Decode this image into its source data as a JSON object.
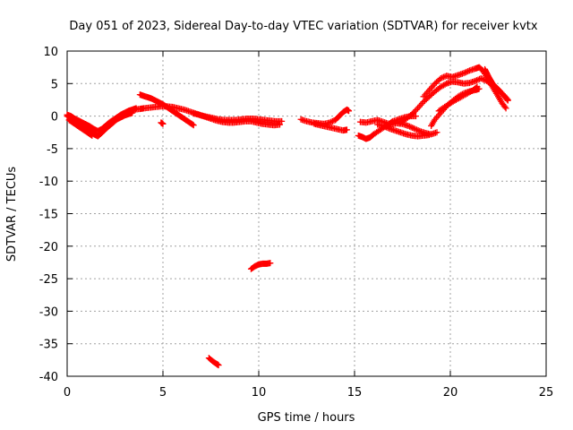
{
  "chart_data": {
    "type": "scatter",
    "title": "Day 051 of 2023, Sidereal Day-to-day VTEC variation (SDTVAR) for receiver kvtx",
    "xlabel": "GPS time / hours",
    "ylabel": "SDTVAR / TECUs",
    "xlim": [
      0,
      25
    ],
    "ylim": [
      -40,
      10
    ],
    "xticks": [
      0,
      5,
      10,
      15,
      20,
      25
    ],
    "yticks": [
      10,
      5,
      0,
      -5,
      -10,
      -15,
      -20,
      -25,
      -30,
      -35,
      -40
    ],
    "grid": true,
    "marker": "plus",
    "series": [
      {
        "name": "SDTVAR",
        "color": "#ff0000",
        "segments": [
          [
            [
              0.0,
              0.0
            ],
            [
              0.2,
              -0.3
            ],
            [
              0.4,
              -0.8
            ],
            [
              0.6,
              -1.2
            ],
            [
              0.8,
              -1.6
            ],
            [
              1.0,
              -2.0
            ],
            [
              1.2,
              -2.4
            ],
            [
              1.4,
              -2.8
            ],
            [
              1.6,
              -3.1
            ],
            [
              1.8,
              -2.6
            ],
            [
              2.0,
              -2.0
            ],
            [
              2.2,
              -1.5
            ],
            [
              2.4,
              -1.0
            ],
            [
              2.6,
              -0.5
            ],
            [
              2.8,
              -0.2
            ],
            [
              3.0,
              0.1
            ],
            [
              3.2,
              0.3
            ],
            [
              3.4,
              0.5
            ]
          ],
          [
            [
              0.0,
              0.2
            ],
            [
              0.2,
              0.0
            ],
            [
              0.4,
              -0.4
            ],
            [
              0.6,
              -0.7
            ],
            [
              0.8,
              -1.0
            ],
            [
              1.0,
              -1.3
            ],
            [
              1.2,
              -1.6
            ],
            [
              1.4,
              -2.0
            ],
            [
              1.6,
              -2.3
            ],
            [
              1.8,
              -2.0
            ],
            [
              2.0,
              -1.5
            ],
            [
              2.2,
              -1.0
            ],
            [
              2.4,
              -0.6
            ],
            [
              2.6,
              -0.2
            ],
            [
              2.8,
              0.2
            ],
            [
              3.0,
              0.5
            ],
            [
              3.2,
              0.8
            ],
            [
              3.4,
              1.0
            ],
            [
              3.6,
              1.2
            ]
          ],
          [
            [
              0.1,
              -0.6
            ],
            [
              0.3,
              -1.0
            ],
            [
              0.5,
              -1.4
            ],
            [
              0.7,
              -1.8
            ],
            [
              0.9,
              -2.2
            ],
            [
              1.1,
              -2.6
            ],
            [
              1.3,
              -3.0
            ]
          ],
          [
            [
              3.5,
              1.0
            ],
            [
              3.8,
              1.1
            ],
            [
              4.0,
              1.2
            ],
            [
              4.3,
              1.3
            ],
            [
              4.6,
              1.4
            ],
            [
              4.9,
              1.5
            ],
            [
              5.2,
              1.5
            ],
            [
              5.5,
              1.4
            ],
            [
              5.8,
              1.2
            ],
            [
              6.1,
              1.0
            ],
            [
              6.4,
              0.7
            ],
            [
              6.7,
              0.4
            ],
            [
              7.0,
              0.1
            ],
            [
              7.3,
              -0.1
            ],
            [
              7.6,
              -0.3
            ],
            [
              7.9,
              -0.5
            ],
            [
              8.2,
              -0.6
            ],
            [
              8.5,
              -0.6
            ],
            [
              8.8,
              -0.6
            ],
            [
              9.1,
              -0.5
            ],
            [
              9.4,
              -0.4
            ],
            [
              9.7,
              -0.4
            ],
            [
              10.0,
              -0.5
            ],
            [
              10.3,
              -0.6
            ],
            [
              10.6,
              -0.7
            ],
            [
              10.9,
              -0.8
            ],
            [
              11.2,
              -0.8
            ]
          ],
          [
            [
              3.8,
              3.3
            ],
            [
              4.0,
              3.1
            ],
            [
              4.2,
              2.9
            ],
            [
              4.4,
              2.7
            ],
            [
              4.6,
              2.4
            ],
            [
              4.8,
              2.1
            ],
            [
              5.0,
              1.8
            ],
            [
              5.2,
              1.4
            ],
            [
              5.4,
              1.0
            ],
            [
              5.6,
              0.6
            ],
            [
              5.8,
              0.2
            ],
            [
              6.0,
              -0.2
            ],
            [
              6.2,
              -0.6
            ],
            [
              6.4,
              -1.0
            ],
            [
              6.6,
              -1.4
            ]
          ],
          [
            [
              4.9,
              -1.0
            ],
            [
              5.0,
              -1.2
            ]
          ],
          [
            [
              6.6,
              0.4
            ],
            [
              6.9,
              0.2
            ],
            [
              7.2,
              -0.1
            ],
            [
              7.5,
              -0.4
            ],
            [
              7.8,
              -0.7
            ],
            [
              8.1,
              -0.9
            ],
            [
              8.4,
              -1.0
            ],
            [
              8.7,
              -1.0
            ],
            [
              9.0,
              -0.9
            ],
            [
              9.3,
              -0.8
            ],
            [
              9.6,
              -0.8
            ],
            [
              9.9,
              -1.0
            ],
            [
              10.2,
              -1.2
            ],
            [
              10.5,
              -1.3
            ],
            [
              10.8,
              -1.4
            ],
            [
              11.1,
              -1.3
            ]
          ],
          [
            [
              7.4,
              -37.2
            ],
            [
              7.6,
              -37.7
            ],
            [
              7.8,
              -38.1
            ],
            [
              7.9,
              -38.3
            ]
          ],
          [
            [
              9.6,
              -23.5
            ],
            [
              9.8,
              -23.1
            ],
            [
              10.0,
              -22.8
            ],
            [
              10.2,
              -22.7
            ],
            [
              10.4,
              -22.7
            ],
            [
              10.6,
              -22.6
            ]
          ],
          [
            [
              12.2,
              -0.5
            ],
            [
              12.5,
              -0.8
            ],
            [
              12.8,
              -1.0
            ],
            [
              13.1,
              -1.1
            ],
            [
              13.4,
              -1.2
            ],
            [
              13.7,
              -1.0
            ],
            [
              14.0,
              -0.6
            ],
            [
              14.2,
              0.0
            ],
            [
              14.4,
              0.6
            ],
            [
              14.6,
              1.0
            ],
            [
              14.7,
              0.8
            ]
          ],
          [
            [
              12.9,
              -1.2
            ],
            [
              13.2,
              -1.4
            ],
            [
              13.5,
              -1.6
            ],
            [
              13.8,
              -1.8
            ],
            [
              14.1,
              -2.0
            ],
            [
              14.4,
              -2.2
            ],
            [
              14.6,
              -2.1
            ]
          ],
          [
            [
              15.2,
              -3.0
            ],
            [
              15.4,
              -3.2
            ],
            [
              15.6,
              -3.5
            ],
            [
              15.8,
              -3.3
            ],
            [
              16.0,
              -2.8
            ],
            [
              16.3,
              -2.2
            ],
            [
              16.6,
              -1.6
            ],
            [
              16.9,
              -1.3
            ],
            [
              17.2,
              -1.1
            ],
            [
              17.5,
              -1.2
            ],
            [
              17.8,
              -1.5
            ],
            [
              18.1,
              -1.9
            ],
            [
              18.4,
              -2.3
            ],
            [
              18.7,
              -2.6
            ],
            [
              19.0,
              -2.8
            ],
            [
              19.3,
              -2.5
            ]
          ],
          [
            [
              15.3,
              -0.9
            ],
            [
              15.6,
              -1.0
            ],
            [
              15.9,
              -0.8
            ],
            [
              16.2,
              -0.6
            ],
            [
              16.5,
              -0.9
            ],
            [
              16.8,
              -1.2
            ],
            [
              17.0,
              -0.8
            ],
            [
              17.3,
              -0.5
            ],
            [
              17.6,
              -0.2
            ],
            [
              17.9,
              0.0
            ],
            [
              18.2,
              0.0
            ]
          ],
          [
            [
              16.2,
              -1.3
            ],
            [
              16.5,
              -1.5
            ],
            [
              16.8,
              -1.9
            ],
            [
              17.1,
              -2.2
            ],
            [
              17.4,
              -2.5
            ],
            [
              17.7,
              -2.8
            ],
            [
              18.0,
              -3.0
            ],
            [
              18.3,
              -3.1
            ],
            [
              18.6,
              -3.0
            ],
            [
              18.9,
              -2.9
            ]
          ],
          [
            [
              17.4,
              -1.0
            ],
            [
              17.7,
              -0.4
            ],
            [
              18.0,
              0.3
            ],
            [
              18.3,
              1.2
            ],
            [
              18.6,
              2.2
            ],
            [
              18.9,
              3.0
            ],
            [
              19.2,
              3.8
            ],
            [
              19.5,
              4.5
            ],
            [
              19.8,
              5.0
            ],
            [
              20.1,
              5.3
            ],
            [
              20.4,
              5.2
            ],
            [
              20.7,
              5.0
            ],
            [
              21.0,
              5.1
            ],
            [
              21.3,
              5.4
            ],
            [
              21.6,
              5.8
            ],
            [
              21.9,
              5.4
            ],
            [
              22.2,
              4.8
            ],
            [
              22.5,
              4.1
            ],
            [
              22.8,
              3.2
            ],
            [
              23.0,
              2.5
            ]
          ],
          [
            [
              18.6,
              3.0
            ],
            [
              18.9,
              4.0
            ],
            [
              19.2,
              5.0
            ],
            [
              19.5,
              5.8
            ],
            [
              19.8,
              6.2
            ],
            [
              20.1,
              6.0
            ],
            [
              20.4,
              6.3
            ],
            [
              20.7,
              6.6
            ],
            [
              21.0,
              7.0
            ],
            [
              21.3,
              7.3
            ],
            [
              21.5,
              7.5
            ],
            [
              21.7,
              7.0
            ],
            [
              21.9,
              6.0
            ],
            [
              22.1,
              5.0
            ],
            [
              22.3,
              4.0
            ],
            [
              22.5,
              3.0
            ],
            [
              22.7,
              2.0
            ],
            [
              22.9,
              1.2
            ]
          ],
          [
            [
              19.0,
              -1.5
            ],
            [
              19.2,
              -0.5
            ],
            [
              19.5,
              0.5
            ],
            [
              19.8,
              1.5
            ],
            [
              20.1,
              2.3
            ],
            [
              20.4,
              3.0
            ],
            [
              20.7,
              3.5
            ],
            [
              21.0,
              3.8
            ],
            [
              21.3,
              4.0
            ],
            [
              21.5,
              4.2
            ]
          ],
          [
            [
              19.4,
              0.8
            ],
            [
              19.7,
              1.4
            ],
            [
              20.0,
              2.0
            ],
            [
              20.3,
              2.5
            ],
            [
              20.6,
              3.0
            ],
            [
              20.9,
              3.5
            ],
            [
              21.2,
              4.0
            ],
            [
              21.4,
              4.5
            ]
          ],
          [
            [
              21.8,
              7.2
            ],
            [
              21.9,
              6.6
            ],
            [
              22.0,
              6.0
            ],
            [
              22.1,
              5.5
            ],
            [
              22.2,
              5.0
            ],
            [
              22.4,
              4.4
            ],
            [
              22.6,
              3.8
            ],
            [
              22.8,
              3.1
            ],
            [
              23.0,
              2.4
            ]
          ]
        ]
      }
    ]
  }
}
